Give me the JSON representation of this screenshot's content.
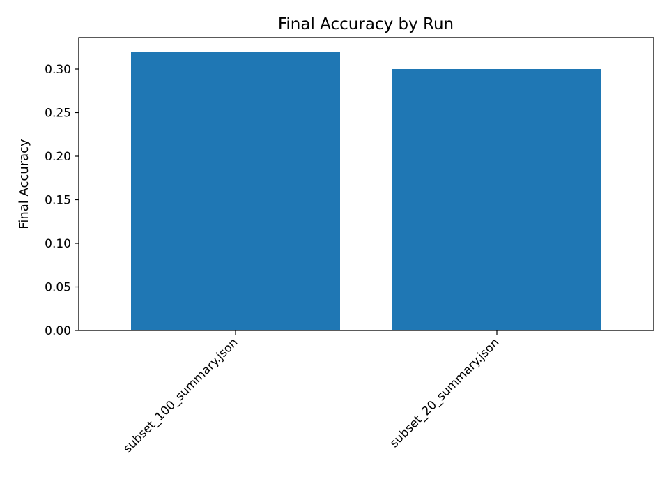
{
  "chart_data": {
    "type": "bar",
    "title": "Final Accuracy by Run",
    "xlabel": "",
    "ylabel": "Final Accuracy",
    "categories": [
      "subset_100_summary.json",
      "subset_20_summary.json"
    ],
    "values": [
      0.32,
      0.3
    ],
    "ylim": [
      0,
      0.336
    ],
    "yticks": [
      "0.00",
      "0.05",
      "0.10",
      "0.15",
      "0.20",
      "0.25",
      "0.30"
    ],
    "grid": false,
    "bar_color": "#1f77b4"
  }
}
